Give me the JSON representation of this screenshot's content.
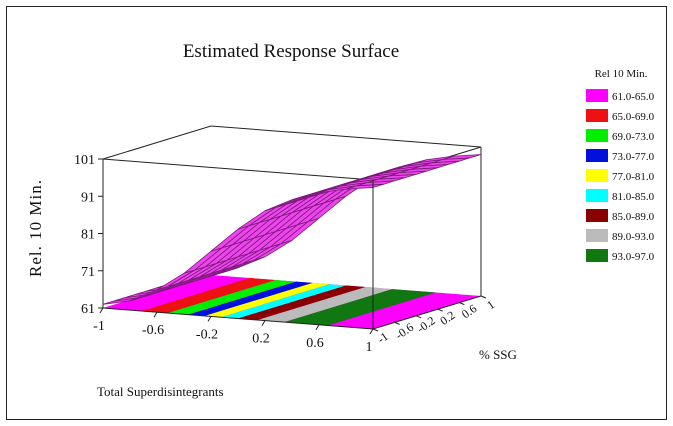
{
  "chart_data": {
    "type": "surface3d",
    "title": "Estimated Response Surface",
    "xlabel": "Total Superdisintegrants",
    "ylabel": "% SSG",
    "zlabel": "Rel. 10 Min.",
    "xticks": [
      "-1",
      "-0.6",
      "-0.2",
      "0.2",
      "0.6",
      "1"
    ],
    "yticks": [
      "-1",
      "-0.6",
      "-0.2",
      "0.2",
      "0.6",
      "1"
    ],
    "zticks": [
      "61",
      "71",
      "81",
      "91",
      "101"
    ],
    "xlim": [
      -1,
      1
    ],
    "ylim": [
      -1,
      1
    ],
    "zlim": [
      61,
      101
    ],
    "legend": {
      "title": "Rel 10 Min.",
      "position": "right",
      "entries": [
        {
          "label": "61.0-65.0",
          "color": "#ff00ff"
        },
        {
          "label": "65.0-69.0",
          "color": "#ee1111"
        },
        {
          "label": "69.0-73.0",
          "color": "#00ee00"
        },
        {
          "label": "73.0-77.0",
          "color": "#0011dd"
        },
        {
          "label": "77.0-81.0",
          "color": "#ffff00"
        },
        {
          "label": "81.0-85.0",
          "color": "#00ffff"
        },
        {
          "label": "85.0-89.0",
          "color": "#880000"
        },
        {
          "label": "89.0-93.0",
          "color": "#bbbbbb"
        },
        {
          "label": "93.0-97.0",
          "color": "#117711"
        }
      ]
    },
    "surface": {
      "color": "#ee44ee",
      "grid_x": [
        -1,
        -0.8,
        -0.6,
        -0.4,
        -0.2,
        0,
        0.2,
        0.4,
        0.6,
        0.8,
        1
      ],
      "grid_y": [
        -1,
        -0.8,
        -0.6,
        -0.4,
        -0.2,
        0,
        0.2,
        0.4,
        0.6,
        0.8,
        1
      ],
      "z_at_x": [
        62,
        63.5,
        67,
        72,
        78.5,
        85,
        90.5,
        94,
        96.5,
        98,
        99
      ]
    }
  }
}
